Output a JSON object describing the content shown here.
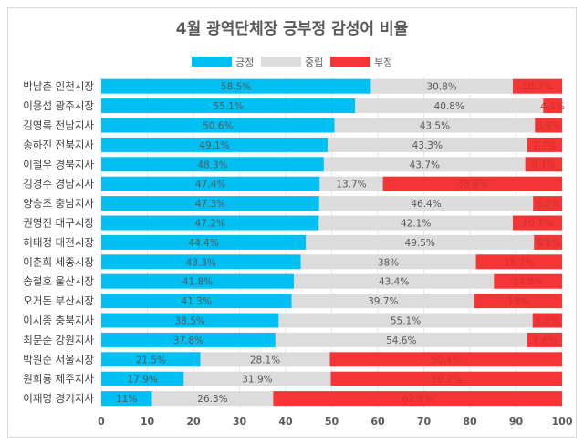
{
  "chart_data": {
    "type": "bar",
    "stacked": true,
    "orientation": "horizontal",
    "title": "4월 광역단체장 긍부정 감성어 비율",
    "legend_position": "top",
    "xlim": [
      0,
      100
    ],
    "xticks": [
      0,
      10,
      20,
      30,
      40,
      50,
      60,
      70,
      80,
      90,
      100
    ],
    "grid": true,
    "categories": [
      "박남춘 인천시장",
      "이용섭 광주시장",
      "김영록 전남지사",
      "송하진 전북지사",
      "이철우 경북지사",
      "김경수 경남지사",
      "양승조 충남지사",
      "권영진 대구시장",
      "허태정 대전시장",
      "이춘희 세종시장",
      "송철호 울산시장",
      "오거돈 부산시장",
      "이시종 충북지사",
      "최문순 강원지사",
      "박원순 서울시장",
      "원희룡 제주지사",
      "이재명 경기지사"
    ],
    "series": [
      {
        "name": "긍정",
        "color": "#00bff3",
        "values": [
          58.5,
          55.1,
          50.6,
          49.1,
          48.3,
          47.4,
          47.3,
          47.2,
          44.4,
          43.3,
          41.8,
          41.3,
          38.5,
          37.8,
          21.5,
          17.9,
          11
        ]
      },
      {
        "name": "중립",
        "color": "#dcdcdc",
        "values": [
          30.8,
          40.8,
          43.5,
          43.3,
          43.7,
          13.7,
          46.4,
          42.1,
          49.5,
          38,
          43.4,
          39.7,
          55.1,
          54.6,
          28.1,
          31.9,
          26.3
        ]
      },
      {
        "name": "부정",
        "color": "#f33535",
        "values": [
          10.7,
          4.1,
          5.9,
          7.7,
          8.1,
          38.9,
          6.3,
          10.7,
          6.1,
          18.7,
          14.8,
          19,
          6.5,
          7.6,
          50.4,
          50.2,
          62.8
        ]
      }
    ]
  }
}
